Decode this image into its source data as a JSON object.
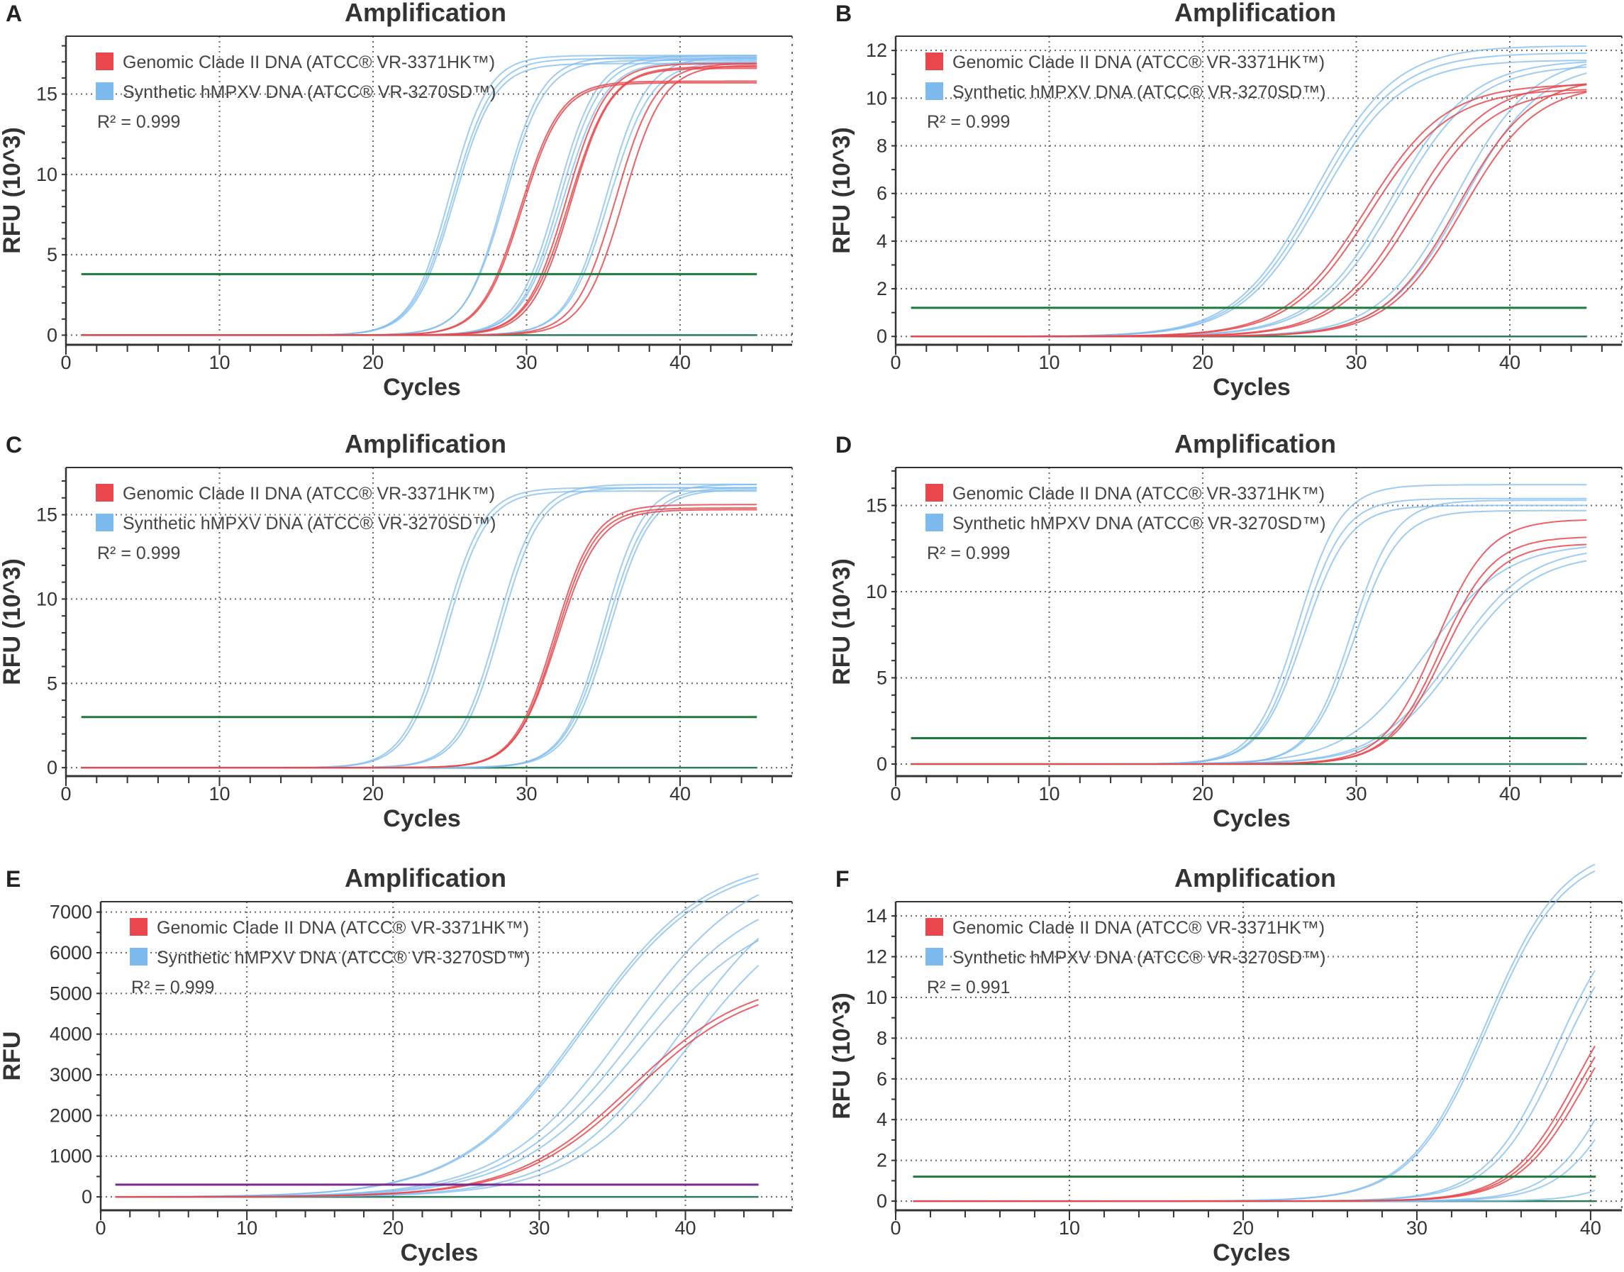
{
  "chart_data": [
    {
      "type": "line",
      "panel": "A",
      "title": "Amplification",
      "xlabel": "Cycles",
      "ylabel": "RFU (10^3)",
      "xlim": [
        0,
        47.3
      ],
      "ylim": [
        -0.6,
        18.6
      ],
      "xticks": [
        0,
        10,
        20,
        30,
        40
      ],
      "yticks": [
        0,
        5,
        10,
        15
      ],
      "grid": true,
      "legend_placement": "top-left",
      "legend": [
        "Genomic Clade II DNA (ATCC® VR-3371HK™)",
        "Synthetic hMPXV DNA (ATCC® VR-3270SD™)"
      ],
      "r2": "R² = 0.999",
      "threshold": 3.8,
      "threshold_color": "#1e7a3c",
      "curves": [
        {
          "series": "synthetic",
          "midpoint": 25.0,
          "plateau": 17.4,
          "scale": 1.25
        },
        {
          "series": "synthetic",
          "midpoint": 25.2,
          "plateau": 17.2,
          "scale": 1.3
        },
        {
          "series": "synthetic",
          "midpoint": 25.3,
          "plateau": 16.9,
          "scale": 1.3
        },
        {
          "series": "synthetic",
          "midpoint": 28.5,
          "plateau": 17.3,
          "scale": 1.25
        },
        {
          "series": "synthetic",
          "midpoint": 28.6,
          "plateau": 17.1,
          "scale": 1.3
        },
        {
          "series": "synthetic",
          "midpoint": 32.0,
          "plateau": 17.4,
          "scale": 1.3
        },
        {
          "series": "synthetic",
          "midpoint": 32.2,
          "plateau": 17.2,
          "scale": 1.3
        },
        {
          "series": "synthetic",
          "midpoint": 32.4,
          "plateau": 17.0,
          "scale": 1.35
        },
        {
          "series": "synthetic",
          "midpoint": 35.2,
          "plateau": 17.3,
          "scale": 1.3
        },
        {
          "series": "synthetic",
          "midpoint": 35.4,
          "plateau": 17.0,
          "scale": 1.35
        },
        {
          "series": "genomic",
          "midpoint": 29.6,
          "plateau": 15.8,
          "scale": 1.3
        },
        {
          "series": "genomic",
          "midpoint": 29.7,
          "plateau": 15.7,
          "scale": 1.3
        },
        {
          "series": "genomic",
          "midpoint": 32.6,
          "plateau": 16.9,
          "scale": 1.3
        },
        {
          "series": "genomic",
          "midpoint": 32.8,
          "plateau": 16.7,
          "scale": 1.35
        },
        {
          "series": "genomic",
          "midpoint": 32.9,
          "plateau": 16.6,
          "scale": 1.3
        },
        {
          "series": "genomic",
          "midpoint": 35.8,
          "plateau": 16.9,
          "scale": 1.3
        },
        {
          "series": "genomic",
          "midpoint": 36.3,
          "plateau": 16.8,
          "scale": 1.3
        }
      ]
    },
    {
      "type": "line",
      "panel": "B",
      "title": "Amplification",
      "xlabel": "Cycles",
      "ylabel": "RFU (10^3)",
      "xlim": [
        0,
        47.3
      ],
      "ylim": [
        -0.35,
        12.6
      ],
      "xticks": [
        0,
        10,
        20,
        30,
        40
      ],
      "yticks": [
        0,
        2,
        4,
        6,
        8,
        10,
        12
      ],
      "grid": true,
      "legend_placement": "top-left",
      "legend": [
        "Genomic Clade II DNA (ATCC® VR-3371HK™)",
        "Synthetic hMPXV DNA (ATCC® VR-3270SD™)"
      ],
      "r2": "R² = 0.999",
      "threshold": 1.2,
      "threshold_color": "#1e7a3c",
      "curves": [
        {
          "series": "synthetic",
          "midpoint": 27.3,
          "plateau": 12.2,
          "scale": 2.6
        },
        {
          "series": "synthetic",
          "midpoint": 27.5,
          "plateau": 11.9,
          "scale": 2.6
        },
        {
          "series": "synthetic",
          "midpoint": 27.7,
          "plateau": 11.6,
          "scale": 2.6
        },
        {
          "series": "synthetic",
          "midpoint": 32.3,
          "plateau": 11.6,
          "scale": 2.6
        },
        {
          "series": "synthetic",
          "midpoint": 32.6,
          "plateau": 11.4,
          "scale": 2.6
        },
        {
          "series": "synthetic",
          "midpoint": 36.5,
          "plateau": 11.8,
          "scale": 2.5
        },
        {
          "series": "synthetic",
          "midpoint": 37.0,
          "plateau": 11.5,
          "scale": 2.5
        },
        {
          "series": "genomic",
          "midpoint": 30.6,
          "plateau": 10.6,
          "scale": 2.6
        },
        {
          "series": "genomic",
          "midpoint": 30.9,
          "plateau": 10.4,
          "scale": 2.6
        },
        {
          "series": "genomic",
          "midpoint": 33.5,
          "plateau": 10.7,
          "scale": 2.5
        },
        {
          "series": "genomic",
          "midpoint": 33.8,
          "plateau": 10.4,
          "scale": 2.5
        },
        {
          "series": "genomic",
          "midpoint": 36.6,
          "plateau": 10.9,
          "scale": 2.4
        },
        {
          "series": "genomic",
          "midpoint": 36.9,
          "plateau": 10.6,
          "scale": 2.4
        }
      ]
    },
    {
      "type": "line",
      "panel": "C",
      "title": "Amplification",
      "xlabel": "Cycles",
      "ylabel": "RFU (10^3)",
      "xlim": [
        0,
        47.3
      ],
      "ylim": [
        -0.5,
        17.8
      ],
      "xticks": [
        0,
        10,
        20,
        30,
        40
      ],
      "yticks": [
        0,
        5,
        10,
        15
      ],
      "grid": true,
      "legend_placement": "top-left",
      "legend": [
        "Genomic Clade II DNA (ATCC® VR-3371HK™)",
        "Synthetic hMPXV DNA (ATCC® VR-3270SD™)"
      ],
      "r2": "R² = 0.999",
      "threshold": 3.0,
      "threshold_color": "#1e7a3c",
      "curves": [
        {
          "series": "synthetic",
          "midpoint": 24.6,
          "plateau": 16.6,
          "scale": 1.3
        },
        {
          "series": "synthetic",
          "midpoint": 24.8,
          "plateau": 16.4,
          "scale": 1.3
        },
        {
          "series": "synthetic",
          "midpoint": 28.1,
          "plateau": 16.8,
          "scale": 1.3
        },
        {
          "series": "synthetic",
          "midpoint": 28.3,
          "plateau": 16.6,
          "scale": 1.3
        },
        {
          "series": "synthetic",
          "midpoint": 35.0,
          "plateau": 16.8,
          "scale": 1.3
        },
        {
          "series": "synthetic",
          "midpoint": 35.2,
          "plateau": 16.6,
          "scale": 1.35
        },
        {
          "series": "synthetic",
          "midpoint": 35.4,
          "plateau": 16.5,
          "scale": 1.35
        },
        {
          "series": "genomic",
          "midpoint": 31.8,
          "plateau": 15.6,
          "scale": 1.3
        },
        {
          "series": "genomic",
          "midpoint": 31.9,
          "plateau": 15.4,
          "scale": 1.3
        },
        {
          "series": "genomic",
          "midpoint": 32.0,
          "plateau": 15.3,
          "scale": 1.35
        }
      ]
    },
    {
      "type": "line",
      "panel": "D",
      "title": "Amplification",
      "xlabel": "Cycles",
      "ylabel": "RFU (10^3)",
      "xlim": [
        0,
        47.3
      ],
      "ylim": [
        -0.7,
        17.2
      ],
      "xticks": [
        0,
        10,
        20,
        30,
        40
      ],
      "yticks": [
        0,
        5,
        10,
        15
      ],
      "grid": true,
      "legend_placement": "top-left",
      "legend": [
        "Genomic Clade II DNA (ATCC® VR-3371HK™)",
        "Synthetic hMPXV DNA (ATCC® VR-3270SD™)"
      ],
      "r2": "R² = 0.999",
      "threshold": 1.5,
      "threshold_color": "#1e7a3c",
      "curves": [
        {
          "series": "synthetic",
          "midpoint": 26.2,
          "plateau": 16.2,
          "scale": 1.4
        },
        {
          "series": "synthetic",
          "midpoint": 26.4,
          "plateau": 15.4,
          "scale": 1.4
        },
        {
          "series": "synthetic",
          "midpoint": 26.6,
          "plateau": 15.0,
          "scale": 1.45
        },
        {
          "series": "synthetic",
          "midpoint": 29.7,
          "plateau": 15.3,
          "scale": 1.4
        },
        {
          "series": "synthetic",
          "midpoint": 29.9,
          "plateau": 14.7,
          "scale": 1.45
        },
        {
          "series": "synthetic",
          "midpoint": 34.5,
          "plateau": 12.8,
          "scale": 2.6
        },
        {
          "series": "synthetic",
          "midpoint": 36.3,
          "plateau": 12.6,
          "scale": 2.5
        },
        {
          "series": "synthetic",
          "midpoint": 36.6,
          "plateau": 12.2,
          "scale": 2.5
        },
        {
          "series": "genomic",
          "midpoint": 35.2,
          "plateau": 14.2,
          "scale": 1.7
        },
        {
          "series": "genomic",
          "midpoint": 35.5,
          "plateau": 13.2,
          "scale": 1.7
        },
        {
          "series": "genomic",
          "midpoint": 35.7,
          "plateau": 12.8,
          "scale": 1.75
        }
      ]
    },
    {
      "type": "line",
      "panel": "E",
      "title": "Amplification",
      "xlabel": "Cycles",
      "ylabel": "RFU",
      "xlim": [
        0,
        47.3
      ],
      "ylim": [
        -330,
        7255
      ],
      "xticks": [
        0,
        10,
        20,
        30,
        40
      ],
      "yticks": [
        0,
        1000,
        2000,
        3000,
        4000,
        5000,
        6000,
        7000
      ],
      "grid": true,
      "legend_placement": "top-left",
      "legend": [
        "Genomic Clade II DNA (ATCC® VR-3371HK™)",
        "Synthetic hMPXV DNA (ATCC® VR-3270SD™)"
      ],
      "r2": "R² = 0.999",
      "threshold": 300,
      "threshold_color": "#7a2a8c",
      "curves": [
        {
          "series": "synthetic",
          "midpoint": 33.0,
          "plateau": 8400,
          "scale": 4.2
        },
        {
          "series": "synthetic",
          "midpoint": 33.1,
          "plateau": 8300,
          "scale": 4.2
        },
        {
          "series": "synthetic",
          "midpoint": 36.0,
          "plateau": 8300,
          "scale": 4.2
        },
        {
          "series": "synthetic",
          "midpoint": 36.4,
          "plateau": 7700,
          "scale": 4.2
        },
        {
          "series": "synthetic",
          "midpoint": 36.8,
          "plateau": 7200,
          "scale": 4.2
        },
        {
          "series": "synthetic",
          "midpoint": 39.6,
          "plateau": 8000,
          "scale": 4.0
        },
        {
          "series": "synthetic",
          "midpoint": 40.2,
          "plateau": 7400,
          "scale": 4.0
        },
        {
          "series": "genomic",
          "midpoint": 36.3,
          "plateau": 5400,
          "scale": 4.0
        },
        {
          "series": "genomic",
          "midpoint": 36.6,
          "plateau": 5300,
          "scale": 4.0
        }
      ]
    },
    {
      "type": "line",
      "panel": "F",
      "title": "Amplification",
      "xlabel": "Cycles",
      "ylabel": "RFU (10^3)",
      "xlim": [
        0,
        41.8
      ],
      "ylim": [
        -0.45,
        14.7
      ],
      "xticks": [
        0,
        10,
        20,
        30,
        40
      ],
      "yticks": [
        0,
        2,
        4,
        6,
        8,
        10,
        12,
        14
      ],
      "grid": true,
      "legend_placement": "top-left",
      "legend": [
        "Genomic Clade II DNA (ATCC® VR-3371HK™)",
        "Synthetic hMPXV DNA (ATCC® VR-3270SD™)"
      ],
      "r2": "R² = 0.991",
      "threshold": 1.2,
      "threshold_color": "#1e7a3c",
      "curves": [
        {
          "series": "synthetic",
          "midpoint": 34.0,
          "plateau": 17.5,
          "scale": 2.2
        },
        {
          "series": "synthetic",
          "midpoint": 34.1,
          "plateau": 17.2,
          "scale": 2.2
        },
        {
          "series": "synthetic",
          "midpoint": 38.0,
          "plateau": 15.0,
          "scale": 2.0
        },
        {
          "series": "synthetic",
          "midpoint": 38.3,
          "plateau": 14.5,
          "scale": 2.0
        },
        {
          "series": "synthetic",
          "midpoint": 41.5,
          "plateau": 12.0,
          "scale": 1.8
        },
        {
          "series": "synthetic",
          "midpoint": 42.0,
          "plateau": 11.0,
          "scale": 1.8
        },
        {
          "series": "synthetic",
          "midpoint": 44.5,
          "plateau": 8.0,
          "scale": 1.6
        },
        {
          "series": "genomic",
          "midpoint": 39.2,
          "plateau": 12.0,
          "scale": 1.9
        },
        {
          "series": "genomic",
          "midpoint": 39.4,
          "plateau": 11.6,
          "scale": 1.9
        },
        {
          "series": "genomic",
          "midpoint": 39.6,
          "plateau": 11.2,
          "scale": 1.9
        }
      ]
    }
  ],
  "colors": {
    "genomic": "#e9474b",
    "synthetic": "#7dbbee",
    "baseline": "#2f7a5a",
    "axis": "#333333",
    "grid": "#666666"
  }
}
